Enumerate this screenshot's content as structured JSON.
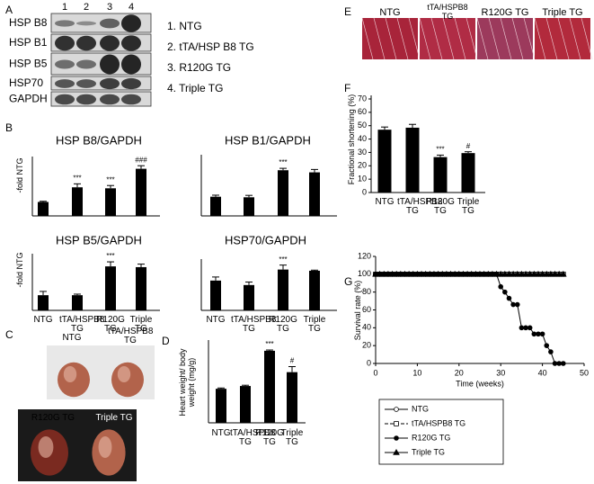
{
  "panel_labels": [
    "A",
    "B",
    "C",
    "D",
    "E",
    "F",
    "G"
  ],
  "blot": {
    "lanes": [
      "1",
      "2",
      "3",
      "4"
    ],
    "rows": [
      "HSP B8",
      "HSP B1",
      "HSP B5",
      "HSP70",
      "GAPDH"
    ],
    "legend": [
      "1. NTG",
      "2. tTA/HSP B8 TG",
      "3. R120G TG",
      "4. Triple TG"
    ]
  },
  "heart_photos": [
    "NTG",
    "tTA/HSPB8 TG",
    "R120G TG",
    "Triple TG"
  ],
  "tissue_images": [
    "NTG",
    "tTA/HSPB8 TG",
    "R120G TG",
    "Triple TG"
  ],
  "chart_data": [
    {
      "type": "bar",
      "title": "HSP B8/GAPDH",
      "y_label": "-fold NTG",
      "categories": [
        null,
        null,
        null,
        null
      ],
      "values": [
        1.0,
        2.05,
        1.98,
        3.38
      ],
      "errors": [
        0.05,
        0.25,
        0.2,
        0.22
      ],
      "annotations": [
        null,
        "***",
        "***",
        "###"
      ],
      "ylim": [
        0,
        4
      ],
      "color": "#000000"
    },
    {
      "type": "bar",
      "title": "HSP B1/GAPDH",
      "categories": [
        null,
        null,
        null,
        null
      ],
      "values": [
        1.0,
        0.97,
        2.38,
        2.27
      ],
      "errors": [
        0.08,
        0.1,
        0.1,
        0.15
      ],
      "annotations": [
        null,
        null,
        "***",
        null
      ],
      "ylim": [
        0,
        3
      ],
      "color": "#000000"
    },
    {
      "type": "bar",
      "title": "HSP B5/GAPDH",
      "y_label": "-fold NTG",
      "categories": [
        "NTG",
        "tTA/HSPB8 TG",
        "R120G TG",
        "Triple TG"
      ],
      "values": [
        1.0,
        1.0,
        2.9,
        2.85
      ],
      "errors": [
        0.25,
        0.07,
        0.3,
        0.2
      ],
      "annotations": [
        null,
        null,
        "***",
        null
      ],
      "ylim": [
        0,
        3.5
      ],
      "color": "#000000"
    },
    {
      "type": "bar",
      "title": "HSP70/GAPDH",
      "categories": [
        "NTG",
        "tTA/HSPB8 TG",
        "R120G TG",
        "Triple TG"
      ],
      "values": [
        1.0,
        0.85,
        1.37,
        1.33
      ],
      "errors": [
        0.12,
        0.1,
        0.15,
        0.02
      ],
      "annotations": [
        null,
        null,
        "***",
        null
      ],
      "ylim": [
        0,
        1.6
      ],
      "color": "#000000"
    },
    {
      "type": "bar",
      "y_label": "Heart weight/ body weight (mg/g)",
      "categories": [
        "NTG",
        "tTA/HSPB8 TG",
        "R120G TG",
        "Triple TG"
      ],
      "values": [
        4.3,
        4.65,
        9.1,
        6.4
      ],
      "errors": [
        0.1,
        0.1,
        0.1,
        0.7
      ],
      "annotations": [
        null,
        null,
        "***",
        "#"
      ],
      "ylim": [
        0,
        10
      ],
      "color": "#000000"
    },
    {
      "type": "bar",
      "y_label": "Fractional shortening (%)",
      "categories": [
        "NTG",
        "tTA/HSPB8 TG",
        "R120G TG",
        "Triple TG"
      ],
      "values": [
        47,
        48.5,
        26.5,
        29.5
      ],
      "errors": [
        2,
        2.5,
        1.5,
        1
      ],
      "annotations": [
        null,
        null,
        "***",
        "#"
      ],
      "ylim": [
        0,
        70
      ],
      "yticks": [
        0,
        10,
        20,
        30,
        40,
        50,
        60,
        70
      ],
      "color": "#000000"
    },
    {
      "type": "line",
      "x_label": "Time (weeks)",
      "y_label": "Survival rate (%)",
      "x": [
        0,
        1,
        2,
        3,
        4,
        5,
        6,
        7,
        8,
        9,
        10,
        11,
        12,
        13,
        14,
        15,
        16,
        17,
        18,
        19,
        20,
        21,
        22,
        23,
        24,
        25,
        26,
        27,
        28,
        29,
        30,
        31,
        32,
        33,
        34,
        35,
        36,
        37,
        38,
        39,
        40,
        41,
        42,
        43,
        44,
        45
      ],
      "xlim": [
        0,
        50
      ],
      "xticks": [
        0,
        10,
        20,
        30,
        40,
        50
      ],
      "ylim": [
        0,
        120
      ],
      "yticks": [
        0,
        20,
        40,
        60,
        80,
        100,
        120
      ],
      "series": [
        {
          "name": "NTG",
          "color": "#000000",
          "marker": "open-circle",
          "dashed": false,
          "values": [
            100,
            100,
            100,
            100,
            100,
            100,
            100,
            100,
            100,
            100,
            100,
            100,
            100,
            100,
            100,
            100,
            100,
            100,
            100,
            100,
            100,
            100,
            100,
            100,
            100,
            100,
            100,
            100,
            100,
            100,
            100,
            100,
            100,
            100,
            100,
            100,
            100,
            100,
            100,
            100,
            100,
            100,
            100,
            100,
            100,
            100
          ]
        },
        {
          "name": "tTA/HSPB8 TG",
          "color": "#000000",
          "marker": "open-square",
          "dashed": true,
          "values": [
            100,
            100,
            100,
            100,
            100,
            100,
            100,
            100,
            100,
            100,
            100,
            100,
            100,
            100,
            100,
            100,
            100,
            100,
            100,
            100,
            100,
            100,
            100,
            100,
            100,
            100,
            100,
            100,
            100,
            100,
            100,
            100,
            100,
            100,
            100,
            100,
            100,
            100,
            100,
            100,
            100,
            100,
            100,
            100,
            100,
            100
          ]
        },
        {
          "name": "R120G TG",
          "color": "#000000",
          "marker": "filled-circle",
          "dashed": false,
          "values": [
            100,
            100,
            100,
            100,
            100,
            100,
            100,
            100,
            100,
            100,
            100,
            100,
            100,
            100,
            100,
            100,
            100,
            100,
            100,
            100,
            100,
            100,
            100,
            100,
            100,
            100,
            100,
            100,
            100,
            100,
            86,
            80,
            73,
            66,
            66,
            40,
            40,
            40,
            33,
            33,
            33,
            20,
            13,
            0,
            0,
            0
          ]
        },
        {
          "name": "Triple TG",
          "color": "#000000",
          "marker": "filled-triangle",
          "dashed": false,
          "values": [
            100,
            100,
            100,
            100,
            100,
            100,
            100,
            100,
            100,
            100,
            100,
            100,
            100,
            100,
            100,
            100,
            100,
            100,
            100,
            100,
            100,
            100,
            100,
            100,
            100,
            100,
            100,
            100,
            100,
            100,
            100,
            100,
            100,
            100,
            100,
            100,
            100,
            100,
            100,
            100,
            100,
            100,
            100,
            100,
            100,
            100
          ]
        }
      ]
    }
  ]
}
